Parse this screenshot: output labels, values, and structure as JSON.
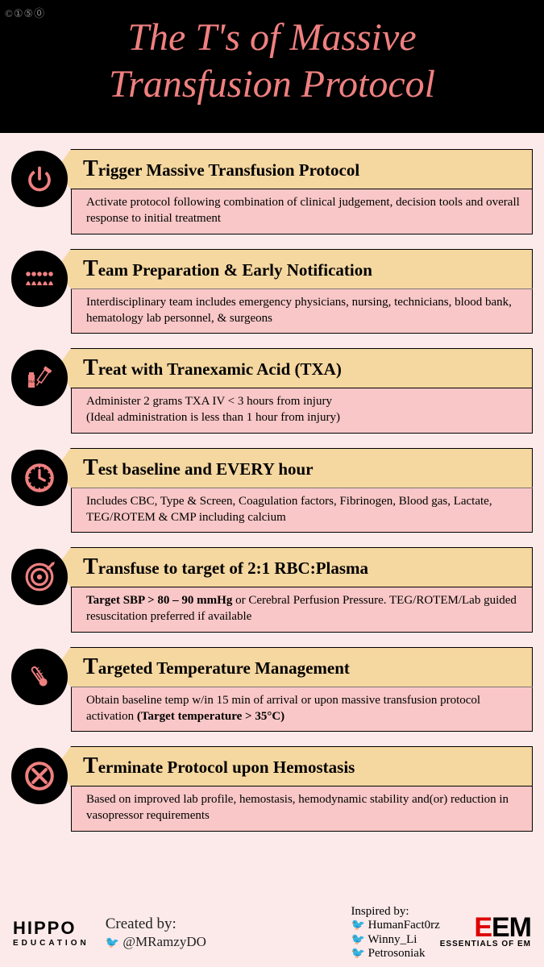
{
  "title_line1": "The T's of Massive",
  "title_line2": "Transfusion Protocol",
  "cc_text": "©①⑤⓪",
  "colors": {
    "background": "#fceaea",
    "header_bg": "#000000",
    "accent": "#f08080",
    "title_bg": "#f5d7a0",
    "desc_bg": "#f9c7c7",
    "border": "#000000"
  },
  "items": [
    {
      "icon": "power",
      "title_rest": "rigger Massive Transfusion Protocol",
      "desc": "Activate protocol following combination of clinical judgement, decision tools and overall response to initial treatment"
    },
    {
      "icon": "team",
      "title_rest": "eam Preparation & Early Notification",
      "desc": "Interdisciplinary team includes emergency physicians, nursing, technicians, blood bank, hematology lab personnel, & surgeons"
    },
    {
      "icon": "txa",
      "title_rest": "reat with Tranexamic Acid (TXA)",
      "desc": "Administer 2 grams TXA IV < 3 hours from injury\n(Ideal administration is less than 1 hour from injury)"
    },
    {
      "icon": "clock",
      "title_rest": "est baseline and EVERY hour",
      "desc": "Includes CBC, Type & Screen, Coagulation factors, Fibrinogen, Blood gas, Lactate, TEG/ROTEM & CMP including calcium"
    },
    {
      "icon": "target",
      "title_rest": "ransfuse to target of 2:1 RBC:Plasma",
      "desc_html": "<b>Target SBP > 80 – 90 mmHg</b> or Cerebral Perfusion Pressure. TEG/ROTEM/Lab guided resuscitation preferred if available"
    },
    {
      "icon": "thermo",
      "title_rest": "argeted Temperature Management",
      "desc_html": "Obtain baseline temp w/in 15 min of arrival or upon massive transfusion protocol activation <b>(Target temperature > 35°C)</b>"
    },
    {
      "icon": "terminate",
      "title_rest": "erminate Protocol upon Hemostasis",
      "desc": "Based on improved lab profile, hemostasis, hemodynamic stability and(or) reduction in vasopressor requirements"
    }
  ],
  "footer": {
    "hippo": "HIPPO",
    "hippo_sub": "EDUCATION",
    "created_label": "Created by:",
    "created_handle": "@MRamzyDO",
    "inspired_label": "Inspired by:",
    "inspired_handles": [
      "HumanFact0rz",
      "Winny_Li",
      "Petrosoniak"
    ],
    "eem_text": "EEM",
    "eem_sub": "ESSENTIALS OF EM"
  }
}
